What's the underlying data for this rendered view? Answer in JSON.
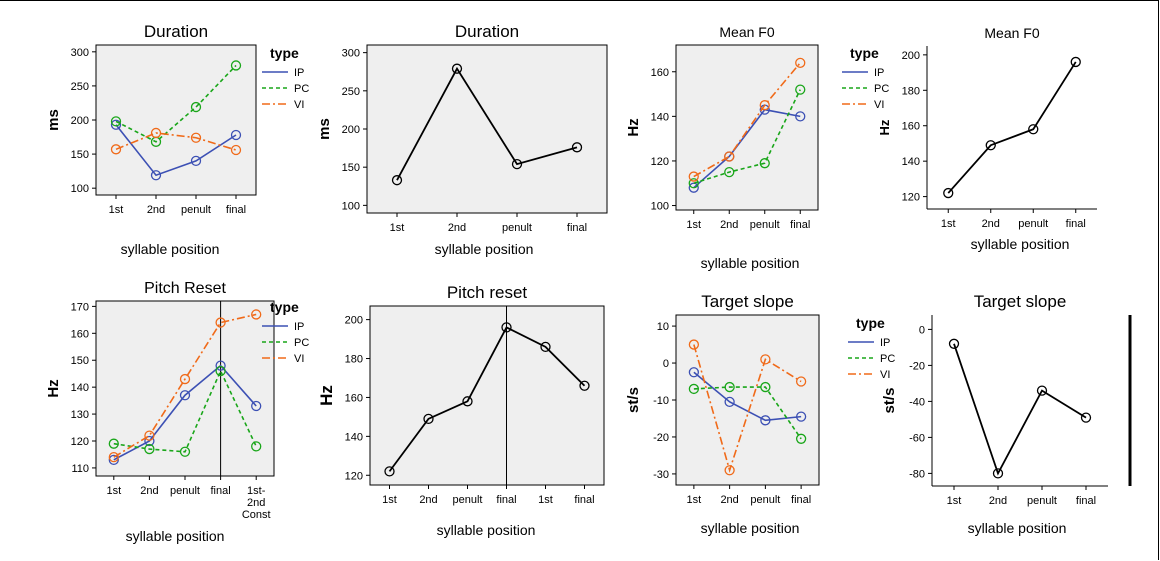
{
  "colors": {
    "IP": "#3c50b4",
    "PC": "#19a619",
    "VI": "#f06a19",
    "single": "#000000",
    "panel": "#efefef"
  },
  "chart_data": [
    {
      "type": "line",
      "title": "Duration",
      "xlabel": "syllable position",
      "ylabel": "ms",
      "categories": [
        "1st",
        "2nd",
        "penult",
        "final"
      ],
      "ylim": [
        90,
        310
      ],
      "yticks": [
        100,
        150,
        200,
        250,
        300
      ],
      "legend_title": "type",
      "series": [
        {
          "name": "IP",
          "values": [
            193,
            119,
            140,
            178
          ]
        },
        {
          "name": "PC",
          "values": [
            198,
            168,
            219,
            280
          ]
        },
        {
          "name": "VI",
          "values": [
            157,
            181,
            174,
            156
          ]
        }
      ]
    },
    {
      "type": "line",
      "title": "Duration",
      "xlabel": "syllable position",
      "ylabel": "ms",
      "categories": [
        "1st",
        "2nd",
        "penult",
        "final"
      ],
      "ylim": [
        90,
        310
      ],
      "yticks": [
        100,
        150,
        200,
        250,
        300
      ],
      "series": [
        {
          "values": [
            133,
            279,
            154,
            176
          ]
        }
      ]
    },
    {
      "type": "line",
      "title": "Mean F0",
      "xlabel": "syllable position",
      "ylabel": "Hz",
      "categories": [
        "1st",
        "2nd",
        "penult",
        "final"
      ],
      "ylim": [
        98,
        172
      ],
      "yticks": [
        100,
        120,
        140,
        160
      ],
      "legend_title": "type",
      "series": [
        {
          "name": "IP",
          "values": [
            108,
            122,
            143,
            140
          ]
        },
        {
          "name": "PC",
          "values": [
            110,
            115,
            119,
            152
          ]
        },
        {
          "name": "VI",
          "values": [
            113,
            122,
            145,
            164
          ]
        }
      ]
    },
    {
      "type": "line",
      "title": "Mean F0",
      "xlabel": "syllable position",
      "ylabel": "Hz",
      "categories": [
        "1st",
        "2nd",
        "penult",
        "final"
      ],
      "ylim": [
        113,
        205
      ],
      "yticks": [
        120,
        140,
        160,
        180,
        200
      ],
      "series": [
        {
          "values": [
            122,
            149,
            158,
            196
          ]
        }
      ]
    },
    {
      "type": "line",
      "title": "Pitch Reset",
      "xlabel": "syllable position",
      "ylabel": "Hz",
      "categories": [
        "1st",
        "2nd",
        "penult",
        "final",
        "1st-\n2nd\nConst"
      ],
      "ylim": [
        107,
        172
      ],
      "yticks": [
        110,
        120,
        130,
        140,
        150,
        160,
        170
      ],
      "vline_after": 3,
      "legend_title": "type",
      "series": [
        {
          "name": "IP",
          "values": [
            113,
            120,
            137,
            148,
            133
          ]
        },
        {
          "name": "PC",
          "values": [
            119,
            117,
            116,
            146,
            118
          ]
        },
        {
          "name": "VI",
          "values": [
            114,
            122,
            143,
            164,
            167
          ]
        }
      ]
    },
    {
      "type": "line",
      "title": "Pitch reset",
      "xlabel": "syllable position",
      "ylabel": "Hz",
      "categories": [
        "1st",
        "2nd",
        "penult",
        "final",
        "1st",
        "final"
      ],
      "ylim": [
        115,
        207
      ],
      "yticks": [
        120,
        140,
        160,
        180,
        200
      ],
      "vline_after": 3,
      "series": [
        {
          "values": [
            122,
            149,
            158,
            196,
            186,
            166
          ]
        }
      ]
    },
    {
      "type": "line",
      "title": "Target slope",
      "xlabel": "syllable position",
      "ylabel": "st/s",
      "categories": [
        "1st",
        "2nd",
        "penult",
        "final"
      ],
      "ylim": [
        -33,
        13
      ],
      "yticks": [
        -30,
        -20,
        -10,
        0,
        10
      ],
      "legend_title": "type",
      "series": [
        {
          "name": "IP",
          "values": [
            -2.5,
            -10.5,
            -15.5,
            -14.5
          ]
        },
        {
          "name": "PC",
          "values": [
            -7,
            -6.5,
            -6.5,
            -20.5
          ]
        },
        {
          "name": "VI",
          "values": [
            5,
            -29,
            1,
            -5
          ]
        }
      ]
    },
    {
      "type": "line",
      "title": "Target slope",
      "xlabel": "syllable position",
      "ylabel": "st/s",
      "categories": [
        "1st",
        "2nd",
        "penult",
        "final"
      ],
      "ylim": [
        -87,
        8
      ],
      "yticks": [
        -80,
        -60,
        -40,
        -20,
        0
      ],
      "series": [
        {
          "values": [
            -8,
            -80,
            -34,
            -49
          ]
        }
      ]
    }
  ]
}
